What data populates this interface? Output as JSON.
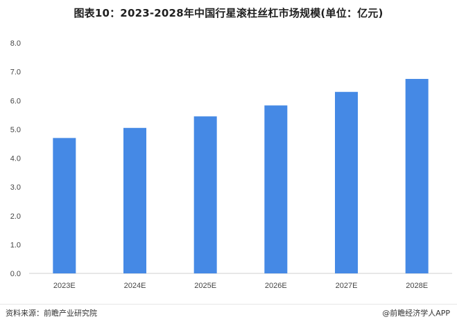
{
  "chart_data": {
    "type": "bar",
    "title": "图表10：2023-2028年中国行星滚柱丝杠市场规模(单位：亿元)",
    "categories": [
      "2023E",
      "2024E",
      "2025E",
      "2026E",
      "2027E",
      "2028E"
    ],
    "values": [
      4.7,
      5.05,
      5.45,
      5.83,
      6.3,
      6.75
    ],
    "ylim": [
      0,
      8
    ],
    "yticks": [
      "0.0",
      "1.0",
      "2.0",
      "3.0",
      "4.0",
      "5.0",
      "6.0",
      "7.0",
      "8.0"
    ],
    "bar_color": "#4589e5",
    "grid": false,
    "xlabel": "",
    "ylabel": ""
  },
  "footer": {
    "source": "资料来源：前瞻产业研究院",
    "credit": "@前瞻经济学人APP"
  }
}
